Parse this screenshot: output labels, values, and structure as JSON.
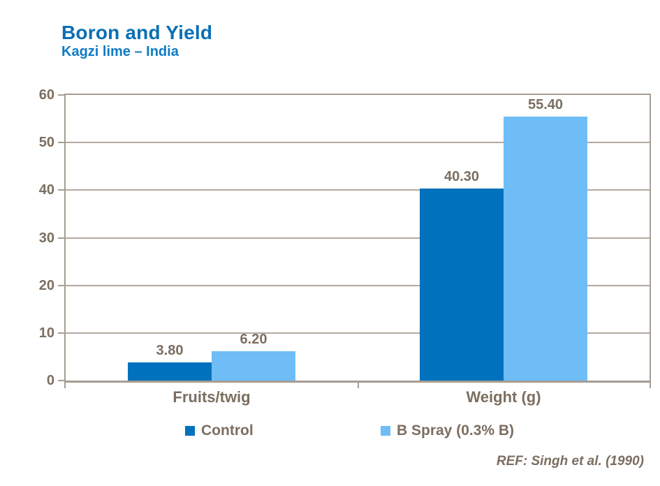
{
  "slide": {
    "title": "Boron and Yield",
    "subtitle": "Kagzi lime – India",
    "reference": "REF: Singh et al. (1990)"
  },
  "style": {
    "background": "#FFFFFF",
    "title_color": "#0A6FB5",
    "subtitle_color": "#0E7BC4",
    "text_color": "#7B6E60",
    "axis_line_color": "#A69D92",
    "gridline_color": "#B3AAA0"
  },
  "chart_data": {
    "type": "bar",
    "title": "Boron and Yield",
    "subtitle": "Kagzi lime – India",
    "categories": [
      "Fruits/twig",
      "Weight (g)"
    ],
    "series": [
      {
        "name": "Control",
        "color": "#0071BC",
        "values": [
          3.8,
          40.3
        ]
      },
      {
        "name": "B Spray (0.3% B)",
        "color": "#6EBDF6",
        "values": [
          6.2,
          55.4
        ]
      }
    ],
    "value_labels": [
      [
        "3.80",
        "40.30"
      ],
      [
        "6.20",
        "55.40"
      ]
    ],
    "ylim": [
      0,
      60
    ],
    "yticks": [
      0,
      10,
      20,
      30,
      40,
      50,
      60
    ],
    "grid": true,
    "legend_position": "bottom",
    "xlabel": "",
    "ylabel": ""
  }
}
